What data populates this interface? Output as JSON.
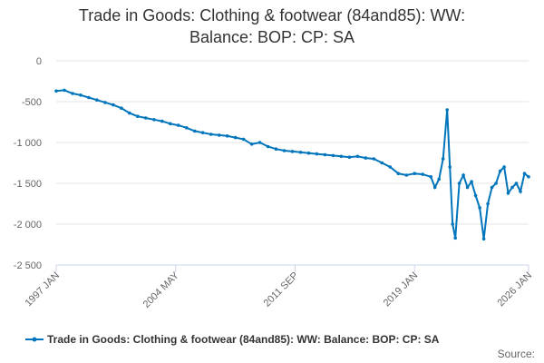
{
  "chart_data": {
    "type": "line",
    "title_line1": "Trade in Goods: Clothing & footwear (84and85): WW:",
    "title_line2": "Balance: BOP: CP: SA",
    "xlabel": "",
    "ylabel": "",
    "ylim": [
      -2500,
      0
    ],
    "yticks": [
      0,
      -500,
      -1000,
      -1500,
      -2000,
      -2500
    ],
    "ytick_labels": [
      "0",
      "-500",
      "-1 000",
      "-1 500",
      "-2 000",
      "-2 500"
    ],
    "x_range": [
      "1997 JAN",
      "2026 JAN"
    ],
    "xtick_labels": [
      "1997 JAN",
      "2004 MAY",
      "2011 SEP",
      "2019 JAN",
      "2026 JAN"
    ],
    "grid": true,
    "legend_position": "bottom",
    "source_label": "Source:",
    "series": [
      {
        "name": "Trade in Goods: Clothing & footwear (84and85): WW: Balance: BOP: CP: SA",
        "color": "#0075bb",
        "points": [
          [
            "1997-01",
            -370
          ],
          [
            "1997-07",
            -360
          ],
          [
            "1998-01",
            -400
          ],
          [
            "1998-07",
            -420
          ],
          [
            "1999-01",
            -450
          ],
          [
            "1999-07",
            -480
          ],
          [
            "2000-01",
            -510
          ],
          [
            "2000-07",
            -540
          ],
          [
            "2001-01",
            -580
          ],
          [
            "2001-07",
            -640
          ],
          [
            "2002-01",
            -680
          ],
          [
            "2002-07",
            -700
          ],
          [
            "2003-01",
            -720
          ],
          [
            "2003-07",
            -740
          ],
          [
            "2004-01",
            -770
          ],
          [
            "2004-07",
            -790
          ],
          [
            "2005-01",
            -820
          ],
          [
            "2005-07",
            -860
          ],
          [
            "2006-01",
            -880
          ],
          [
            "2006-07",
            -900
          ],
          [
            "2007-01",
            -910
          ],
          [
            "2007-07",
            -920
          ],
          [
            "2008-01",
            -940
          ],
          [
            "2008-07",
            -960
          ],
          [
            "2009-01",
            -1020
          ],
          [
            "2009-07",
            -1000
          ],
          [
            "2010-01",
            -1050
          ],
          [
            "2010-07",
            -1080
          ],
          [
            "2011-01",
            -1100
          ],
          [
            "2011-07",
            -1110
          ],
          [
            "2012-01",
            -1120
          ],
          [
            "2012-07",
            -1130
          ],
          [
            "2013-01",
            -1140
          ],
          [
            "2013-07",
            -1150
          ],
          [
            "2014-01",
            -1160
          ],
          [
            "2014-07",
            -1170
          ],
          [
            "2015-01",
            -1180
          ],
          [
            "2015-07",
            -1170
          ],
          [
            "2016-01",
            -1190
          ],
          [
            "2016-07",
            -1200
          ],
          [
            "2017-01",
            -1250
          ],
          [
            "2017-07",
            -1300
          ],
          [
            "2018-01",
            -1380
          ],
          [
            "2018-07",
            -1400
          ],
          [
            "2019-01",
            -1380
          ],
          [
            "2019-07",
            -1390
          ],
          [
            "2020-01",
            -1420
          ],
          [
            "2020-04",
            -1550
          ],
          [
            "2020-07",
            -1450
          ],
          [
            "2020-10",
            -1200
          ],
          [
            "2021-01",
            -600
          ],
          [
            "2021-03",
            -1300
          ],
          [
            "2021-05",
            -2000
          ],
          [
            "2021-07",
            -2170
          ],
          [
            "2021-10",
            -1500
          ],
          [
            "2022-01",
            -1400
          ],
          [
            "2022-04",
            -1550
          ],
          [
            "2022-07",
            -1480
          ],
          [
            "2022-10",
            -1650
          ],
          [
            "2023-01",
            -1800
          ],
          [
            "2023-04",
            -2180
          ],
          [
            "2023-07",
            -1750
          ],
          [
            "2023-10",
            -1550
          ],
          [
            "2024-01",
            -1500
          ],
          [
            "2024-04",
            -1350
          ],
          [
            "2024-07",
            -1300
          ],
          [
            "2024-10",
            -1620
          ],
          [
            "2025-01",
            -1550
          ],
          [
            "2025-04",
            -1500
          ],
          [
            "2025-07",
            -1600
          ],
          [
            "2025-10",
            -1380
          ],
          [
            "2026-01",
            -1420
          ]
        ]
      }
    ]
  }
}
